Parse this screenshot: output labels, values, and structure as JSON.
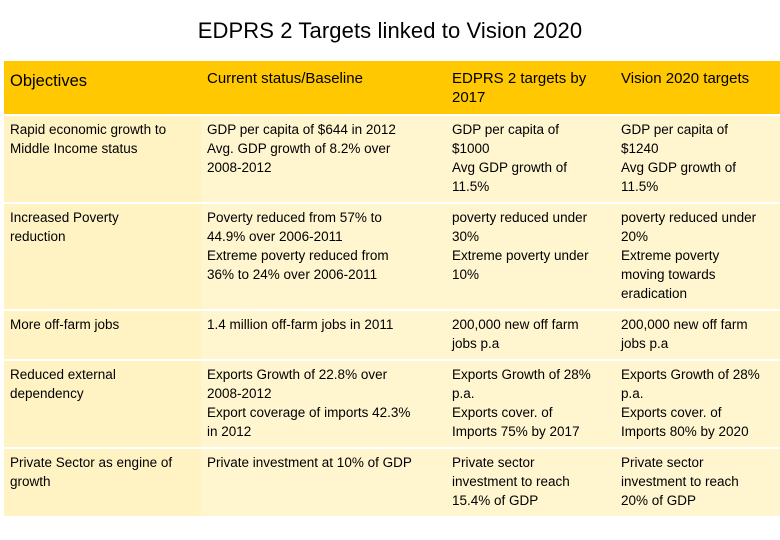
{
  "title": "EDPRS 2 Targets linked to Vision 2020",
  "table": {
    "headers": [
      "Objectives",
      "Current status/Baseline",
      "EDPRS 2 targets by 2017",
      "Vision 2020 targets"
    ],
    "rows": [
      {
        "objective": [
          "Rapid economic growth to",
          "Middle Income status"
        ],
        "baseline": [
          "GDP per capita of $644 in 2012",
          "Avg. GDP growth of 8.2% over",
          "2008-2012"
        ],
        "edprs2": [
          "GDP per capita of",
          "$1000",
          "Avg GDP growth of",
          "11.5%"
        ],
        "vision2020": [
          "GDP per capita of",
          "$1240",
          "Avg GDP growth of",
          "11.5%"
        ]
      },
      {
        "objective": [
          "Increased Poverty",
          "reduction"
        ],
        "baseline": [
          "Poverty reduced from 57% to",
          "44.9% over 2006-2011",
          "Extreme poverty reduced from",
          "36% to 24% over 2006-2011"
        ],
        "edprs2": [
          "poverty reduced under",
          "30%",
          "Extreme poverty under",
          "10%"
        ],
        "vision2020": [
          "poverty reduced under",
          "20%",
          "Extreme poverty",
          "moving towards",
          "eradication"
        ]
      },
      {
        "objective": [
          "More off-farm jobs"
        ],
        "baseline": [
          "1.4 million off-farm jobs in 2011"
        ],
        "edprs2": [
          "200,000 new off farm",
          "jobs p.a"
        ],
        "vision2020": [
          "200,000 new off farm",
          "jobs p.a"
        ]
      },
      {
        "objective": [
          "Reduced external",
          "dependency"
        ],
        "baseline": [
          "Exports Growth of 22.8% over",
          "2008-2012",
          "Export coverage of imports 42.3%",
          "in 2012"
        ],
        "edprs2": [
          "Exports Growth of 28%",
          "p.a.",
          "Exports cover. of",
          "Imports 75% by 2017"
        ],
        "vision2020": [
          "Exports Growth of 28%",
          "p.a.",
          "Exports cover. of",
          "Imports  80% by 2020"
        ]
      },
      {
        "objective": [
          "Private Sector as engine of",
          "growth"
        ],
        "baseline": [
          "Private investment at 10% of GDP"
        ],
        "edprs2": [
          "Private sector",
          "investment to reach",
          "15.4% of GDP"
        ],
        "vision2020": [
          "Private sector",
          "investment to reach",
          "20% of GDP"
        ]
      }
    ]
  }
}
